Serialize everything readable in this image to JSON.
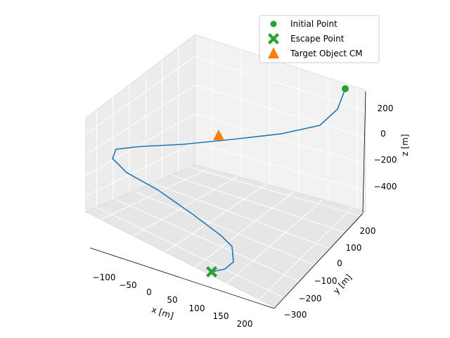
{
  "chart_data": {
    "type": "line3d",
    "title": "",
    "xlabel": "x [m]",
    "ylabel": "y [m]",
    "zlabel": "z [m]",
    "x_ticks": [
      "−100",
      "−50",
      "0",
      "50",
      "100",
      "150",
      "200"
    ],
    "y_ticks": [
      "−300",
      "−200",
      "−100",
      "0",
      "100",
      "200"
    ],
    "z_ticks": [
      "−400",
      "−200",
      "0",
      "200"
    ],
    "xlim": [
      -125,
      215
    ],
    "ylim": [
      -330,
      240
    ],
    "zlim": [
      -560,
      360
    ],
    "grid": true,
    "legend": {
      "placement": "top-right",
      "entries": [
        {
          "label": "Initial Point",
          "marker": "circle",
          "color": "#2ca02c"
        },
        {
          "label": "Escape Point",
          "marker": "x-filled",
          "color": "#2ca02c"
        },
        {
          "label": "Target Object CM",
          "marker": "triangle",
          "color": "#ff7f0e"
        }
      ]
    },
    "series": [
      {
        "color": "#1f77b4",
        "points": [
          [
            195,
            100,
            300
          ],
          [
            180,
            80,
            200
          ],
          [
            150,
            50,
            120
          ],
          [
            100,
            10,
            60
          ],
          [
            40,
            -40,
            10
          ],
          [
            -20,
            -80,
            -30
          ],
          [
            -80,
            -110,
            -60
          ],
          [
            -115,
            -120,
            -80
          ],
          [
            -100,
            -130,
            -120
          ],
          [
            -60,
            -140,
            -190
          ],
          [
            -10,
            -160,
            -260
          ],
          [
            40,
            -180,
            -320
          ],
          [
            90,
            -200,
            -370
          ],
          [
            130,
            -230,
            -410
          ],
          [
            150,
            -260,
            -440
          ],
          [
            135,
            -290,
            -470
          ],
          [
            110,
            -310,
            -490
          ]
        ]
      }
    ],
    "initial_point": {
      "x": 195,
      "y": 100,
      "z": 300,
      "color": "#2ca02c"
    },
    "escape_point": {
      "x": 110,
      "y": -310,
      "z": -490,
      "color": "#2ca02c"
    },
    "target_cm": {
      "x": 0,
      "y": 0,
      "z": 0,
      "color": "#ff7f0e"
    }
  }
}
